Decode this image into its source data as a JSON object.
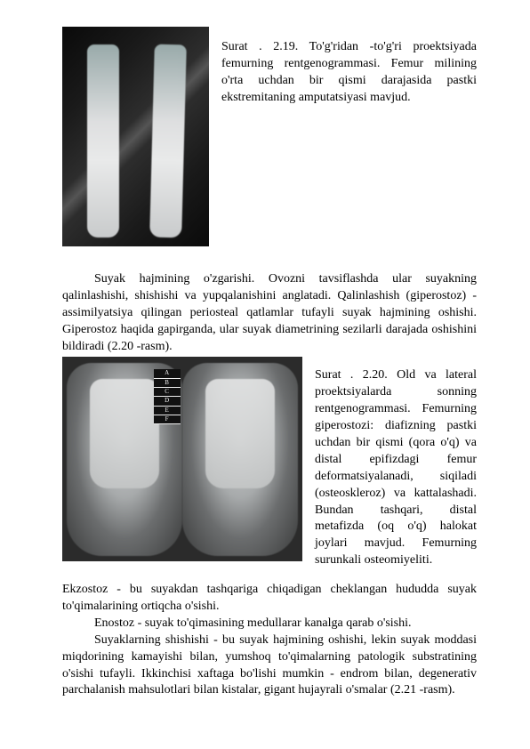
{
  "fig1": {
    "caption": "Surat . 2.19. To'g'ridan -to'g'ri proektsiyada femurning rentgenogrammasi. Femur milining o'rta uchdan bir qismi darajasida pastki ekstremitaning amputatsiyasi mavjud."
  },
  "p1": "Suyak hajmining o'zgarishi. Ovozni tavsiflashda ular suyakning qalinlashishi, shishishi va yupqalanishini anglatadi. Qalinlashish (giperostoz) - assimilyatsiya qilingan periosteal qatlamlar tufayli suyak hajmining oshishi. Giperostoz haqida gapirganda, ular suyak diametrining sezilarli darajada oshishini bildiradi (2.20 -rasm).",
  "fig2": {
    "caption": "Surat . 2.20. Old va lateral proektsiyalarda sonning rentgenogrammasi. Femurning giperostozi: diafizning pastki uchdan bir qismi (qora o'q) va distal epifizdagi femur deformatsiyalanadi, siqiladi (osteoskleroz) va kattalashadi. Bundan tashqari, distal metafizda (oq o'q) halokat joylari mavjud. Femurning surunkali osteomiyeliti."
  },
  "p2": "Ekzostoz - bu suyakdan tashqariga chiqadigan cheklangan hududda suyak to'qimalarining ortiqcha o'sishi.",
  "p3": "Enostoz - suyak to'qimasining medullarar kanalga qarab o'sishi.",
  "p4": "Suyaklarning shishishi - bu suyak hajmining oshishi, lekin suyak moddasi miqdorining kamayishi bilan, yumshoq to'qimalarning patologik substratining o'sishi tufayli. Ikkinchisi xaftaga bo'lishi mumkin - endrom bilan, degenerativ parchalanish mahsulotlari bilan kistalar, gigant hujayrali o'smalar (2.21 -rasm)."
}
